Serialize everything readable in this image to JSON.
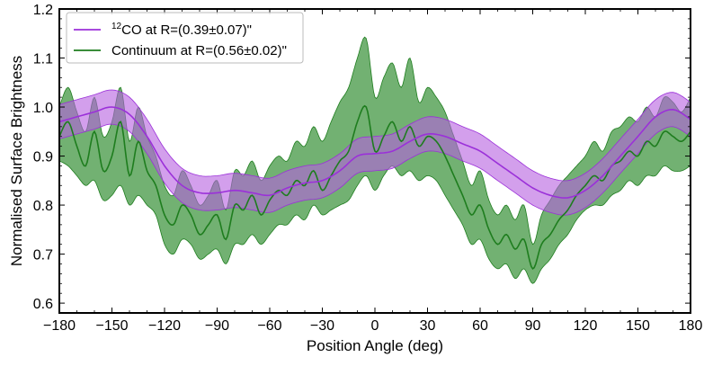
{
  "chart_data": {
    "type": "line",
    "title": "",
    "xlabel": "Position Angle (deg)",
    "ylabel": "Normalised Surface Brightness",
    "xlim": [
      -180,
      180
    ],
    "ylim": [
      0.58,
      1.2
    ],
    "xticks": [
      -180,
      -150,
      -120,
      -90,
      -60,
      -30,
      0,
      30,
      60,
      90,
      120,
      150,
      180
    ],
    "xtick_labels": [
      "−180",
      "−150",
      "−120",
      "−90",
      "−60",
      "−30",
      "0",
      "30",
      "60",
      "90",
      "120",
      "150",
      "180"
    ],
    "yticks": [
      0.6,
      0.7,
      0.8,
      0.9,
      1.0,
      1.1,
      1.2
    ],
    "ytick_labels": [
      "0.6",
      "0.7",
      "0.8",
      "0.9",
      "1.0",
      "1.1",
      "1.2"
    ],
    "grid": false,
    "legend_position": "top-left",
    "series": [
      {
        "name_prefix": "12",
        "name_rest": "CO at R=(0.39±0.07)\"",
        "color": "#9b30d9",
        "band_color": "#b55fe0",
        "x": [
          -180,
          -170,
          -160,
          -150,
          -140,
          -130,
          -120,
          -110,
          -100,
          -90,
          -80,
          -70,
          -60,
          -50,
          -40,
          -30,
          -20,
          -10,
          0,
          10,
          20,
          30,
          40,
          50,
          60,
          70,
          80,
          90,
          100,
          110,
          120,
          130,
          140,
          150,
          160,
          170,
          180
        ],
        "y": [
          0.97,
          0.98,
          0.99,
          1.0,
          0.985,
          0.94,
          0.88,
          0.84,
          0.825,
          0.825,
          0.83,
          0.825,
          0.82,
          0.835,
          0.845,
          0.85,
          0.87,
          0.9,
          0.905,
          0.91,
          0.93,
          0.945,
          0.94,
          0.925,
          0.91,
          0.885,
          0.86,
          0.835,
          0.82,
          0.815,
          0.83,
          0.86,
          0.9,
          0.94,
          0.98,
          0.995,
          0.975
        ],
        "band": 0.035
      },
      {
        "name": "Continuum at R=(0.56±0.02)\"",
        "color": "#1e7d1e",
        "band_color": "#4f9e4f",
        "x": [
          -180,
          -175,
          -170,
          -165,
          -160,
          -155,
          -150,
          -145,
          -140,
          -135,
          -130,
          -125,
          -120,
          -115,
          -110,
          -105,
          -100,
          -95,
          -90,
          -85,
          -80,
          -75,
          -70,
          -65,
          -60,
          -55,
          -50,
          -45,
          -40,
          -35,
          -30,
          -25,
          -20,
          -15,
          -10,
          -5,
          0,
          5,
          10,
          15,
          20,
          25,
          30,
          35,
          40,
          45,
          50,
          55,
          60,
          65,
          70,
          75,
          80,
          85,
          90,
          95,
          100,
          105,
          110,
          115,
          120,
          125,
          130,
          135,
          140,
          145,
          150,
          155,
          160,
          165,
          170,
          175,
          180
        ],
        "y": [
          0.94,
          0.97,
          0.92,
          0.88,
          0.95,
          0.87,
          0.9,
          0.97,
          0.86,
          0.93,
          0.87,
          0.84,
          0.78,
          0.76,
          0.8,
          0.78,
          0.74,
          0.76,
          0.78,
          0.73,
          0.8,
          0.79,
          0.82,
          0.78,
          0.81,
          0.83,
          0.82,
          0.85,
          0.84,
          0.87,
          0.83,
          0.86,
          0.89,
          0.91,
          0.97,
          1.0,
          0.91,
          0.94,
          0.97,
          0.93,
          0.96,
          0.92,
          0.94,
          0.93,
          0.9,
          0.86,
          0.82,
          0.78,
          0.8,
          0.75,
          0.72,
          0.74,
          0.71,
          0.73,
          0.67,
          0.72,
          0.74,
          0.77,
          0.79,
          0.82,
          0.84,
          0.86,
          0.85,
          0.88,
          0.89,
          0.91,
          0.9,
          0.93,
          0.92,
          0.95,
          0.94,
          0.93,
          0.95
        ],
        "band_lo": [
          0.89,
          0.88,
          0.86,
          0.84,
          0.85,
          0.81,
          0.82,
          0.84,
          0.8,
          0.82,
          0.8,
          0.78,
          0.72,
          0.7,
          0.73,
          0.72,
          0.69,
          0.7,
          0.71,
          0.68,
          0.72,
          0.72,
          0.74,
          0.72,
          0.74,
          0.76,
          0.76,
          0.78,
          0.77,
          0.8,
          0.78,
          0.79,
          0.8,
          0.81,
          0.84,
          0.86,
          0.83,
          0.86,
          0.88,
          0.86,
          0.87,
          0.85,
          0.86,
          0.85,
          0.82,
          0.79,
          0.76,
          0.72,
          0.73,
          0.69,
          0.67,
          0.68,
          0.65,
          0.67,
          0.64,
          0.67,
          0.69,
          0.72,
          0.74,
          0.77,
          0.79,
          0.8,
          0.8,
          0.82,
          0.83,
          0.85,
          0.84,
          0.86,
          0.86,
          0.88,
          0.87,
          0.87,
          0.88
        ],
        "band_hi": [
          1.0,
          1.04,
          0.99,
          0.95,
          1.02,
          0.94,
          0.97,
          1.04,
          0.93,
          1.0,
          0.94,
          0.9,
          0.84,
          0.82,
          0.87,
          0.84,
          0.8,
          0.82,
          0.85,
          0.79,
          0.87,
          0.86,
          0.89,
          0.85,
          0.88,
          0.9,
          0.89,
          0.93,
          0.92,
          0.96,
          0.93,
          0.97,
          1.01,
          1.04,
          1.1,
          1.14,
          1.02,
          1.06,
          1.09,
          1.04,
          1.1,
          1.01,
          1.04,
          1.02,
          0.99,
          0.94,
          0.89,
          0.84,
          0.87,
          0.81,
          0.78,
          0.8,
          0.77,
          0.8,
          0.72,
          0.78,
          0.81,
          0.84,
          0.86,
          0.88,
          0.9,
          0.93,
          0.91,
          0.95,
          0.96,
          0.98,
          0.97,
          1.0,
          0.98,
          1.02,
          1.01,
          0.99,
          1.02
        ]
      }
    ]
  }
}
